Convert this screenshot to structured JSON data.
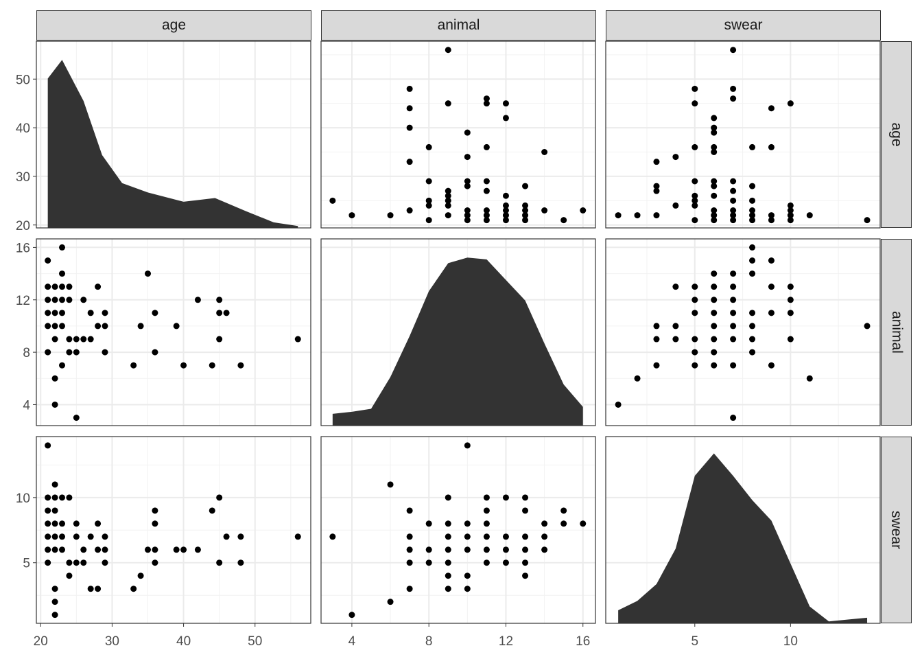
{
  "chart_data": {
    "type": "scatter",
    "variables": [
      "age",
      "animal",
      "swear"
    ],
    "strips": {
      "top": [
        "age",
        "animal",
        "swear"
      ],
      "right": [
        "age",
        "animal",
        "swear"
      ]
    },
    "ranges": {
      "age": [
        19.4,
        57.8
      ],
      "animal": [
        2.4,
        16.65
      ],
      "swear": [
        0.35,
        14.68
      ]
    },
    "ticks": {
      "age": [
        "20",
        "30",
        "40",
        "50"
      ],
      "animal": [
        "4",
        "8",
        "12",
        "16"
      ],
      "swear": [
        "5",
        "10"
      ]
    },
    "grid": true,
    "point_color": "#000000",
    "density_color": "#333333",
    "pairs": {
      "age_animal": [
        [
          23,
          16
        ],
        [
          21,
          15
        ],
        [
          23,
          14
        ],
        [
          35,
          14
        ],
        [
          21,
          13
        ],
        [
          22,
          13
        ],
        [
          23,
          13
        ],
        [
          24,
          13
        ],
        [
          28,
          13
        ],
        [
          21,
          12
        ],
        [
          22,
          12
        ],
        [
          23,
          12
        ],
        [
          24,
          12
        ],
        [
          26,
          12
        ],
        [
          42,
          12
        ],
        [
          45,
          12
        ],
        [
          21,
          11
        ],
        [
          22,
          11
        ],
        [
          23,
          11
        ],
        [
          27,
          11
        ],
        [
          29,
          11
        ],
        [
          36,
          11
        ],
        [
          45,
          11
        ],
        [
          46,
          11
        ],
        [
          21,
          10
        ],
        [
          22,
          10
        ],
        [
          23,
          10
        ],
        [
          28,
          10
        ],
        [
          29,
          10
        ],
        [
          34,
          10
        ],
        [
          39,
          10
        ],
        [
          22,
          9
        ],
        [
          24,
          9
        ],
        [
          25,
          9
        ],
        [
          26,
          9
        ],
        [
          27,
          9
        ],
        [
          45,
          9
        ],
        [
          56,
          9
        ],
        [
          21,
          8
        ],
        [
          24,
          8
        ],
        [
          25,
          8
        ],
        [
          29,
          8
        ],
        [
          36,
          8
        ],
        [
          23,
          7
        ],
        [
          33,
          7
        ],
        [
          40,
          7
        ],
        [
          44,
          7
        ],
        [
          48,
          7
        ],
        [
          22,
          6
        ],
        [
          22,
          4
        ],
        [
          25,
          3
        ]
      ],
      "age_swear": [
        [
          21,
          14
        ],
        [
          22,
          11
        ],
        [
          21,
          10
        ],
        [
          22,
          10
        ],
        [
          23,
          10
        ],
        [
          24,
          10
        ],
        [
          45,
          10
        ],
        [
          21,
          9
        ],
        [
          22,
          9
        ],
        [
          36,
          9
        ],
        [
          44,
          9
        ],
        [
          21,
          8
        ],
        [
          22,
          8
        ],
        [
          23,
          8
        ],
        [
          25,
          8
        ],
        [
          28,
          8
        ],
        [
          36,
          8
        ],
        [
          21,
          7
        ],
        [
          22,
          7
        ],
        [
          23,
          7
        ],
        [
          25,
          7
        ],
        [
          27,
          7
        ],
        [
          29,
          7
        ],
        [
          46,
          7
        ],
        [
          48,
          7
        ],
        [
          56,
          7
        ],
        [
          21,
          6
        ],
        [
          22,
          6
        ],
        [
          23,
          6
        ],
        [
          26,
          6
        ],
        [
          28,
          6
        ],
        [
          29,
          6
        ],
        [
          35,
          6
        ],
        [
          36,
          6
        ],
        [
          39,
          6
        ],
        [
          40,
          6
        ],
        [
          42,
          6
        ],
        [
          21,
          5
        ],
        [
          24,
          5
        ],
        [
          25,
          5
        ],
        [
          26,
          5
        ],
        [
          29,
          5
        ],
        [
          36,
          5
        ],
        [
          45,
          5
        ],
        [
          48,
          5
        ],
        [
          24,
          4
        ],
        [
          34,
          4
        ],
        [
          22,
          3
        ],
        [
          27,
          3
        ],
        [
          28,
          3
        ],
        [
          33,
          3
        ],
        [
          22,
          2
        ],
        [
          22,
          1
        ]
      ],
      "animal_swear": [
        [
          10,
          14
        ],
        [
          6,
          11
        ],
        [
          9,
          10
        ],
        [
          11,
          10
        ],
        [
          12,
          10
        ],
        [
          13,
          10
        ],
        [
          7,
          9
        ],
        [
          11,
          9
        ],
        [
          13,
          9
        ],
        [
          15,
          9
        ],
        [
          8,
          8
        ],
        [
          9,
          8
        ],
        [
          10,
          8
        ],
        [
          11,
          8
        ],
        [
          14,
          8
        ],
        [
          15,
          8
        ],
        [
          16,
          8
        ],
        [
          3,
          7
        ],
        [
          7,
          7
        ],
        [
          9,
          7
        ],
        [
          10,
          7
        ],
        [
          11,
          7
        ],
        [
          12,
          7
        ],
        [
          13,
          7
        ],
        [
          14,
          7
        ],
        [
          7,
          6
        ],
        [
          8,
          6
        ],
        [
          9,
          6
        ],
        [
          10,
          6
        ],
        [
          11,
          6
        ],
        [
          12,
          6
        ],
        [
          13,
          6
        ],
        [
          14,
          6
        ],
        [
          7,
          5
        ],
        [
          8,
          5
        ],
        [
          9,
          5
        ],
        [
          11,
          5
        ],
        [
          12,
          5
        ],
        [
          13,
          5
        ],
        [
          9,
          4
        ],
        [
          10,
          4
        ],
        [
          13,
          4
        ],
        [
          7,
          3
        ],
        [
          9,
          3
        ],
        [
          10,
          3
        ],
        [
          6,
          2
        ],
        [
          4,
          1
        ]
      ]
    },
    "densities": {
      "age": {
        "x": [
          21,
          23,
          26,
          28.6,
          31.4,
          35,
          40,
          44.4,
          48.7,
          52.6,
          56
        ],
        "relative_density": [
          0.8,
          0.9,
          0.68,
          0.39,
          0.24,
          0.19,
          0.14,
          0.16,
          0.09,
          0.03,
          0.01
        ]
      },
      "animal": {
        "x": [
          3,
          4,
          5,
          6,
          7,
          8,
          9,
          10,
          11,
          12,
          13,
          14,
          15,
          16
        ],
        "relative_density": [
          0.063,
          0.074,
          0.09,
          0.26,
          0.48,
          0.72,
          0.87,
          0.9,
          0.89,
          0.78,
          0.67,
          0.44,
          0.22,
          0.1
        ]
      },
      "swear": {
        "x": [
          1,
          2,
          3,
          4,
          5,
          6,
          7,
          8,
          9,
          10,
          11,
          12,
          13,
          14
        ],
        "relative_density": [
          0.07,
          0.12,
          0.21,
          0.4,
          0.79,
          0.91,
          0.79,
          0.66,
          0.55,
          0.32,
          0.09,
          0.01,
          0.02,
          0.03
        ]
      }
    }
  }
}
